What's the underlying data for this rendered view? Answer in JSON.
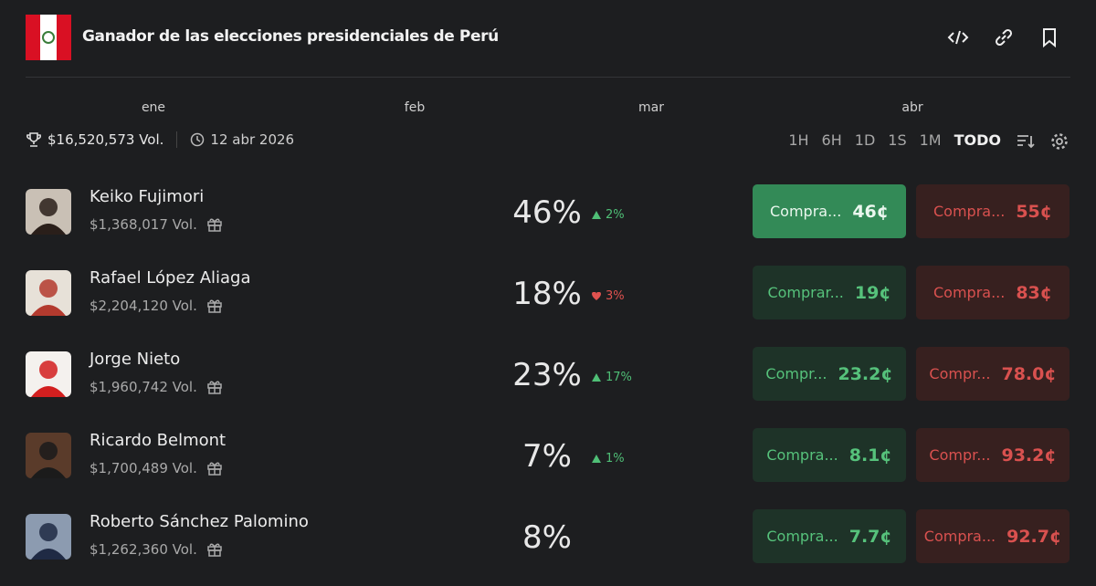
{
  "header": {
    "title": "Ganador de las elecciones presidenciales de Perú"
  },
  "timeline": {
    "months": [
      "ene",
      "feb",
      "mar",
      "abr"
    ]
  },
  "stats": {
    "volume": "$16,520,573 Vol.",
    "date": "12 abr 2026"
  },
  "ranges": {
    "options": [
      "1H",
      "6H",
      "1D",
      "1S",
      "1M",
      "TODO"
    ],
    "active": 5
  },
  "candidates": [
    {
      "name": "Keiko Fujimori",
      "volume": "$1,368,017 Vol.",
      "percent": "46%",
      "change": "2%",
      "direction": "up",
      "yes_label": "Compra...",
      "yes_price": "46¢",
      "no_label": "Compra...",
      "no_price": "55¢",
      "highlight": true
    },
    {
      "name": "Rafael López Aliaga",
      "volume": "$2,204,120 Vol.",
      "percent": "18%",
      "change": "3%",
      "direction": "down",
      "yes_label": "Comprar...",
      "yes_price": "19¢",
      "no_label": "Compra...",
      "no_price": "83¢",
      "highlight": false
    },
    {
      "name": "Jorge Nieto",
      "volume": "$1,960,742 Vol.",
      "percent": "23%",
      "change": "17%",
      "direction": "up",
      "yes_label": "Compr...",
      "yes_price": "23.2¢",
      "no_label": "Compr...",
      "no_price": "78.0¢",
      "highlight": false
    },
    {
      "name": "Ricardo Belmont",
      "volume": "$1,700,489 Vol.",
      "percent": "7%",
      "change": "1%",
      "direction": "up",
      "yes_label": "Compra...",
      "yes_price": "8.1¢",
      "no_label": "Compr...",
      "no_price": "93.2¢",
      "highlight": false
    },
    {
      "name": "Roberto Sánchez Palomino",
      "volume": "$1,262,360 Vol.",
      "percent": "8%",
      "change": null,
      "direction": null,
      "yes_label": "Compra...",
      "yes_price": "7.7¢",
      "no_label": "Compra...",
      "no_price": "92.7¢",
      "highlight": false
    }
  ]
}
